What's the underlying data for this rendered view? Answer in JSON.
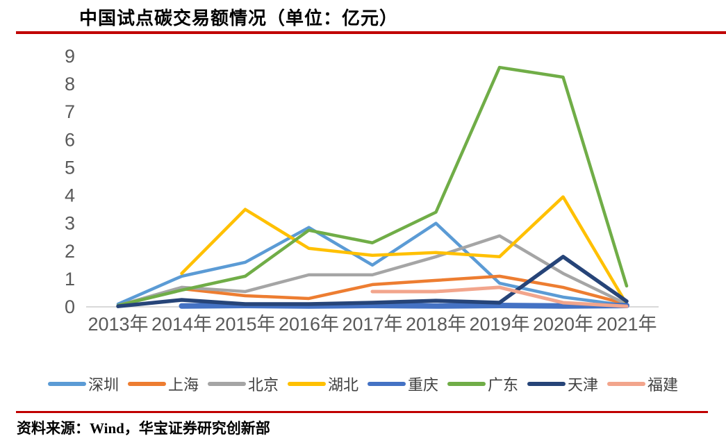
{
  "header": {
    "title": "中国试点碳交易额情况（单位：亿元）"
  },
  "footer": {
    "source": "资料来源：Wind，华宝证券研究创新部"
  },
  "accent_colors": {
    "rule_red": "#c00000",
    "axis_text": "#595959",
    "axis_line": "#d9d9d9",
    "legend_text": "#404040"
  },
  "chart_data": {
    "type": "line",
    "title": "中国试点碳交易额情况（单位：亿元）",
    "xlabel": "",
    "ylabel": "",
    "ylim": [
      0,
      9
    ],
    "yticks": [
      0,
      1,
      2,
      3,
      4,
      5,
      6,
      7,
      8,
      9
    ],
    "grid": false,
    "legend_position": "bottom",
    "categories": [
      "2013年",
      "2014年",
      "2015年",
      "2016年",
      "2017年",
      "2018年",
      "2019年",
      "2020年",
      "2021年"
    ],
    "series": [
      {
        "name": "深圳",
        "color": "#5B9BD5",
        "width": 4.5,
        "values": [
          0.1,
          1.1,
          1.6,
          2.85,
          1.5,
          3.0,
          0.85,
          0.35,
          0.05
        ]
      },
      {
        "name": "上海",
        "color": "#ED7D31",
        "width": 4.5,
        "values": [
          0.05,
          0.65,
          0.4,
          0.3,
          0.8,
          0.95,
          1.1,
          0.7,
          0.1
        ]
      },
      {
        "name": "北京",
        "color": "#A5A5A5",
        "width": 4.5,
        "values": [
          0.05,
          0.7,
          0.55,
          1.15,
          1.15,
          1.8,
          2.55,
          1.2,
          0.1
        ]
      },
      {
        "name": "湖北",
        "color": "#FFC000",
        "width": 4.5,
        "values": [
          null,
          1.2,
          3.5,
          2.1,
          1.85,
          1.95,
          1.8,
          3.95,
          0.1
        ]
      },
      {
        "name": "重庆",
        "color": "#4472C4",
        "width": 8,
        "values": [
          null,
          0.03,
          0.05,
          0.03,
          0.05,
          0.03,
          0.05,
          0.03,
          0.05
        ]
      },
      {
        "name": "广东",
        "color": "#70AD47",
        "width": 4.5,
        "values": [
          0.05,
          0.6,
          1.1,
          2.75,
          2.3,
          3.4,
          8.6,
          8.25,
          0.75
        ]
      },
      {
        "name": "天津",
        "color": "#264478",
        "width": 5.5,
        "values": [
          0.02,
          0.25,
          0.1,
          0.1,
          0.15,
          0.22,
          0.15,
          1.8,
          0.2
        ]
      },
      {
        "name": "福建",
        "color": "#F2A58C",
        "width": 5,
        "values": [
          null,
          null,
          null,
          null,
          0.55,
          0.55,
          0.7,
          0.15,
          0.02
        ]
      }
    ]
  }
}
